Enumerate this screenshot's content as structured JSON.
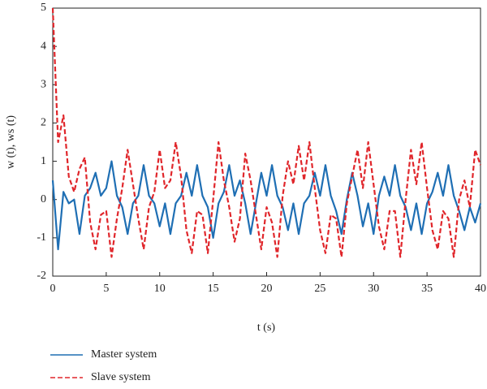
{
  "chart_data": {
    "type": "line",
    "xlabel": "t (s)",
    "ylabel": "w (t), ws (t)",
    "xlim": [
      0,
      40
    ],
    "ylim": [
      -2,
      5
    ],
    "xticks": [
      0,
      5,
      10,
      15,
      20,
      25,
      30,
      35,
      40
    ],
    "yticks": [
      -2,
      -1,
      0,
      1,
      2,
      3,
      4,
      5
    ],
    "legend": "bottom",
    "x": [
      0,
      0.5,
      1,
      1.5,
      2,
      2.5,
      3,
      3.5,
      4,
      4.5,
      5,
      5.5,
      6,
      6.5,
      7,
      7.5,
      8,
      8.5,
      9,
      9.5,
      10,
      10.5,
      11,
      11.5,
      12,
      12.5,
      13,
      13.5,
      14,
      14.5,
      15,
      15.5,
      16,
      16.5,
      17,
      17.5,
      18,
      18.5,
      19,
      19.5,
      20,
      20.5,
      21,
      21.5,
      22,
      22.5,
      23,
      23.5,
      24,
      24.5,
      25,
      25.5,
      26,
      26.5,
      27,
      27.5,
      28,
      28.5,
      29,
      29.5,
      30,
      30.5,
      31,
      31.5,
      32,
      32.5,
      33,
      33.5,
      34,
      34.5,
      35,
      35.5,
      36,
      36.5,
      37,
      37.5,
      38,
      38.5,
      39,
      39.5,
      40
    ],
    "series": [
      {
        "name": "Master system",
        "color": "#1f6fb4",
        "dash": "solid",
        "values": [
          0.5,
          -1.3,
          0.2,
          -0.1,
          0.0,
          -0.9,
          0.1,
          0.3,
          0.7,
          0.1,
          0.3,
          1.0,
          0.1,
          -0.2,
          -0.9,
          -0.1,
          0.1,
          0.9,
          0.1,
          -0.1,
          -0.7,
          -0.1,
          -0.9,
          -0.1,
          0.1,
          0.7,
          0.1,
          0.9,
          0.1,
          -0.2,
          -1.0,
          -0.1,
          0.2,
          0.9,
          0.1,
          0.5,
          -0.1,
          -0.9,
          -0.1,
          0.7,
          0.1,
          0.9,
          0.1,
          -0.2,
          -0.8,
          -0.1,
          -0.9,
          -0.1,
          0.1,
          0.7,
          0.1,
          0.9,
          0.1,
          -0.3,
          -0.9,
          0.0,
          0.7,
          0.1,
          -0.7,
          -0.1,
          -0.9,
          0.1,
          0.6,
          0.1,
          0.9,
          0.1,
          -0.2,
          -0.8,
          -0.1,
          -0.9,
          -0.1,
          0.2,
          0.7,
          0.1,
          0.9,
          0.1,
          -0.3,
          -0.8,
          -0.2,
          -0.6,
          -0.1
        ]
      },
      {
        "name": "Slave system",
        "color": "#e0262b",
        "dash": "dashed",
        "values": [
          5,
          1.5,
          2.2,
          0.6,
          0.2,
          0.8,
          1.1,
          -0.6,
          -1.3,
          -0.4,
          -0.3,
          -1.5,
          -0.5,
          0.3,
          1.3,
          0.4,
          -0.5,
          -1.3,
          -0.2,
          0.2,
          1.3,
          0.3,
          0.5,
          1.5,
          0.6,
          -0.8,
          -1.4,
          -0.3,
          -0.4,
          -1.4,
          0.0,
          1.5,
          0.5,
          -0.2,
          -1.1,
          -0.5,
          1.2,
          0.5,
          -0.4,
          -1.3,
          -0.2,
          -0.6,
          -1.5,
          0.1,
          1.0,
          0.4,
          1.4,
          0.5,
          1.5,
          0.3,
          -0.8,
          -1.4,
          -0.4,
          -0.5,
          -1.5,
          -0.1,
          0.6,
          1.3,
          0.3,
          1.5,
          0.4,
          -0.7,
          -1.3,
          -0.3,
          -0.3,
          -1.5,
          0.0,
          1.3,
          0.4,
          1.5,
          0.3,
          -0.8,
          -1.3,
          -0.3,
          -0.5,
          -1.5,
          0.0,
          0.5,
          -0.2,
          1.3,
          0.9
        ]
      }
    ]
  }
}
